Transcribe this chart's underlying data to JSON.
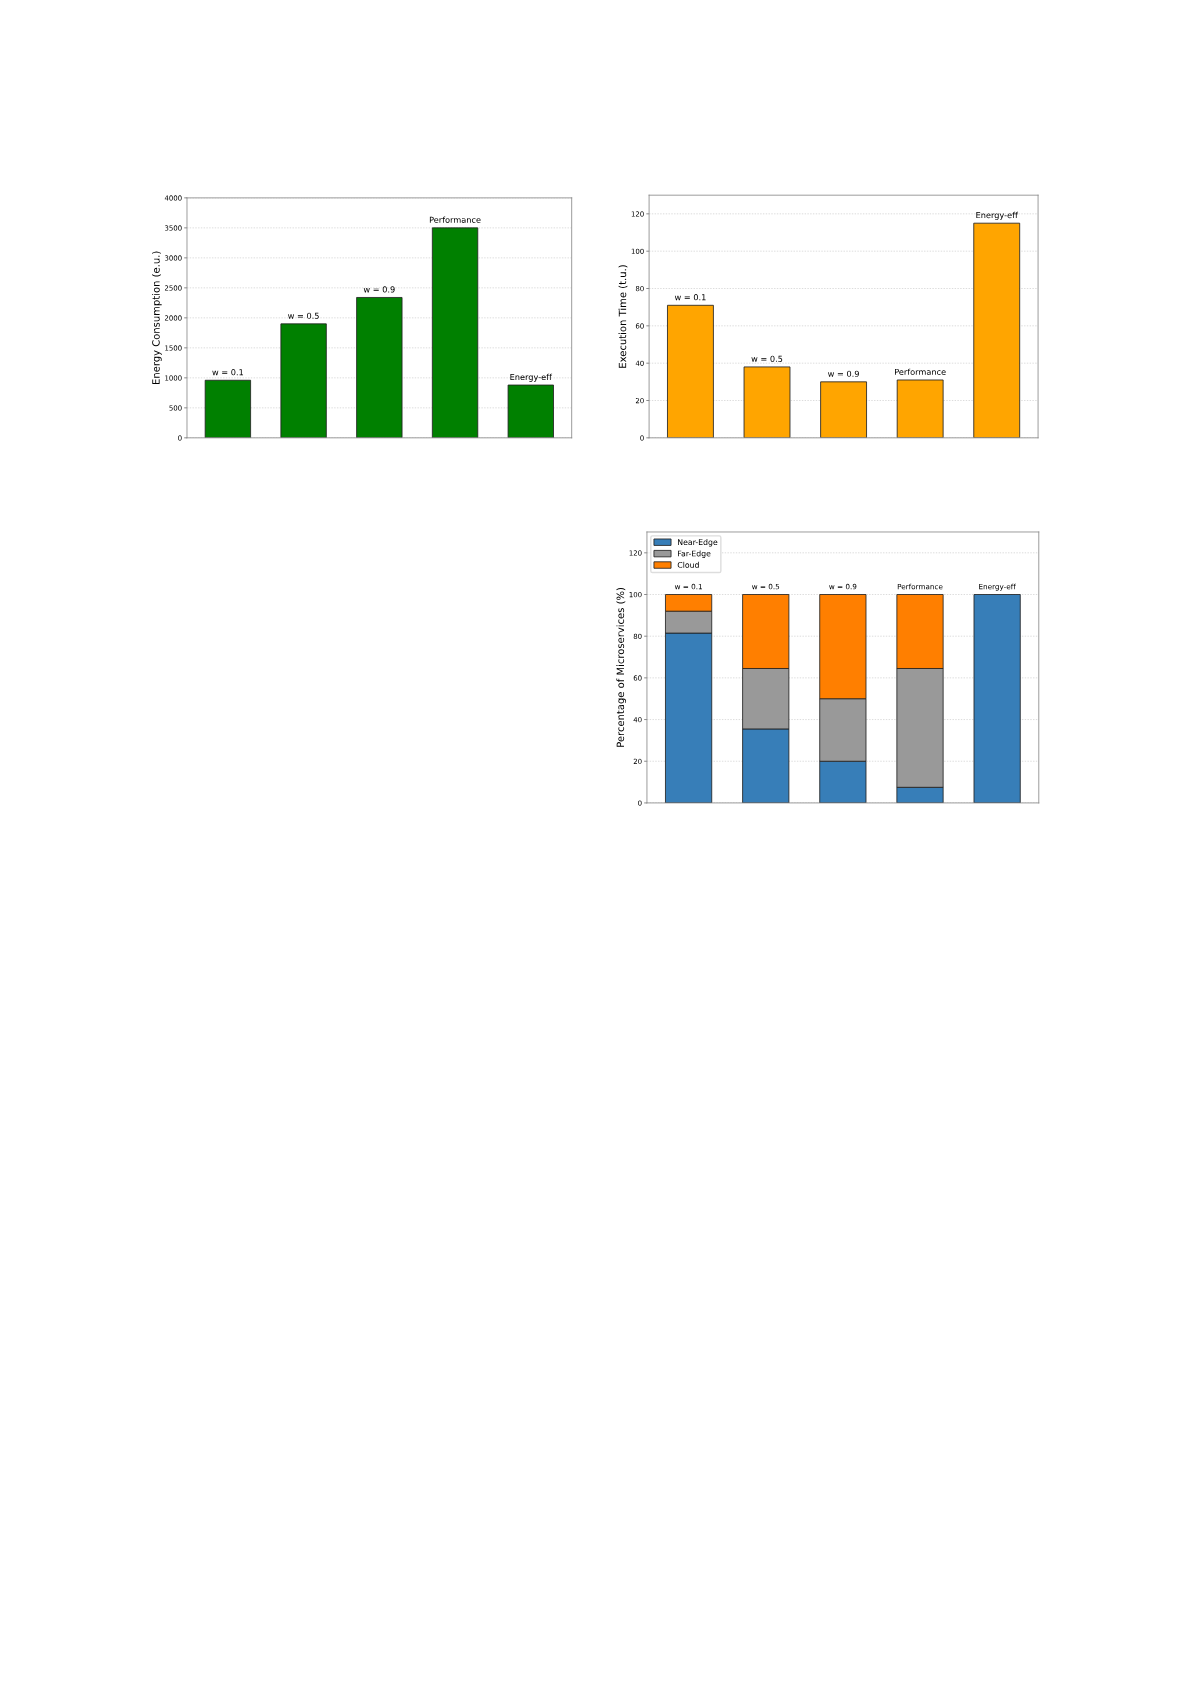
{
  "chart_data": [
    {
      "type": "bar",
      "categories": [
        "w = 0.1",
        "w = 0.5",
        "w = 0.9",
        "Performance",
        "Energy-eff"
      ],
      "values": [
        960,
        1900,
        2340,
        3500,
        880
      ],
      "color": "#008000",
      "ylabel": "Energy Consumption (e.u.)",
      "ylim": [
        0,
        4000
      ],
      "yticks": [
        0,
        500,
        1000,
        1500,
        2000,
        2500,
        3000,
        3500,
        4000
      ],
      "grid": "y",
      "tick_labels": "y"
    },
    {
      "type": "bar",
      "categories": [
        "w = 0.1",
        "w = 0.5",
        "w = 0.9",
        "Performance",
        "Energy-eff"
      ],
      "values": [
        71,
        38,
        30,
        31,
        115
      ],
      "color": "#ffa500",
      "ylabel": "Execution Time (t.u.)",
      "ylim": [
        0,
        130
      ],
      "yticks": [
        0,
        20,
        40,
        60,
        80,
        100,
        120
      ],
      "grid": "y",
      "tick_labels": "y"
    },
    {
      "type": "bar",
      "stacked": true,
      "categories": [
        "w = 0.1",
        "w = 0.5",
        "w = 0.9",
        "Performance",
        "Energy-eff"
      ],
      "series": [
        {
          "name": "Near-Edge",
          "color": "#377eb8",
          "values": [
            81.5,
            35.5,
            20,
            7.5,
            100
          ]
        },
        {
          "name": "Far-Edge",
          "color": "#999999",
          "values": [
            10.5,
            29,
            30,
            57,
            null
          ]
        },
        {
          "name": "Cloud",
          "color": "#ff7f00",
          "values": [
            8,
            35.5,
            50,
            35.5,
            null
          ]
        }
      ],
      "ylabel": "Percentage of Microservices (%)",
      "ylim": [
        0,
        130
      ],
      "yticks": [
        0,
        20,
        40,
        60,
        80,
        100,
        120
      ],
      "grid": "y",
      "tick_labels": "y",
      "legend": "top left"
    }
  ]
}
